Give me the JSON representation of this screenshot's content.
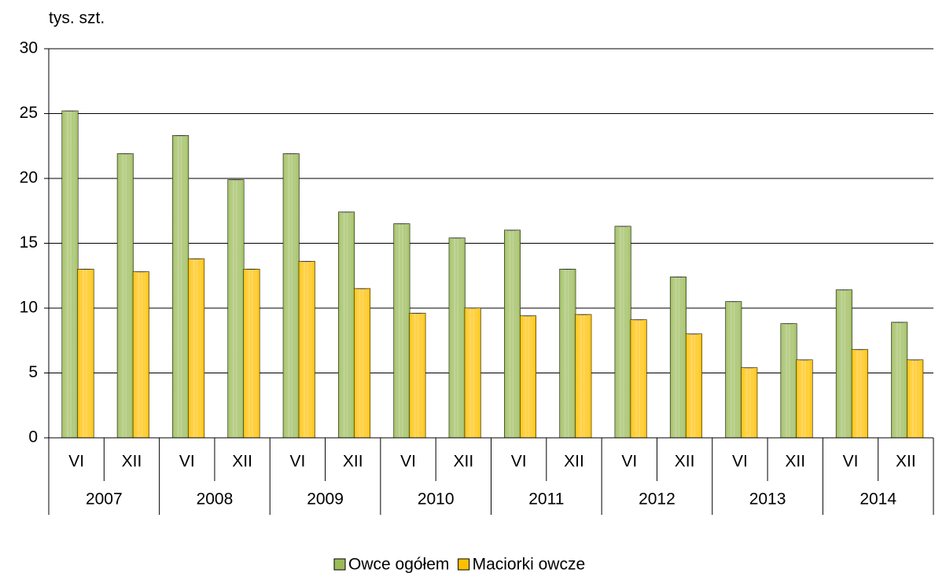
{
  "chart_data": {
    "type": "bar",
    "y_label": "tys. szt.",
    "categories": [
      "VI",
      "XII",
      "VI",
      "XII",
      "VI",
      "XII",
      "VI",
      "XII",
      "VI",
      "XII",
      "VI",
      "XII",
      "VI",
      "XII",
      "VI",
      "XII"
    ],
    "category_groups": [
      "2007",
      "2008",
      "2009",
      "2010",
      "2011",
      "2012",
      "2013",
      "2014"
    ],
    "series": [
      {
        "name": "Owce ogółem",
        "color": "#9bbb59",
        "values": [
          25.2,
          21.9,
          23.3,
          19.9,
          21.9,
          17.4,
          16.5,
          15.4,
          16.0,
          13.0,
          16.3,
          12.4,
          10.5,
          8.8,
          11.4,
          8.9
        ]
      },
      {
        "name": "Maciorki owcze",
        "color": "#ffc000",
        "values": [
          13.0,
          12.8,
          13.8,
          13.0,
          13.6,
          11.5,
          9.6,
          10.0,
          9.4,
          9.5,
          9.1,
          8.0,
          5.4,
          6.0,
          6.8,
          6.0
        ]
      }
    ],
    "ylim": [
      0,
      30
    ],
    "yticks": [
      0,
      5,
      10,
      15,
      20,
      25,
      30
    ],
    "grid": true,
    "legend": "bottom"
  }
}
